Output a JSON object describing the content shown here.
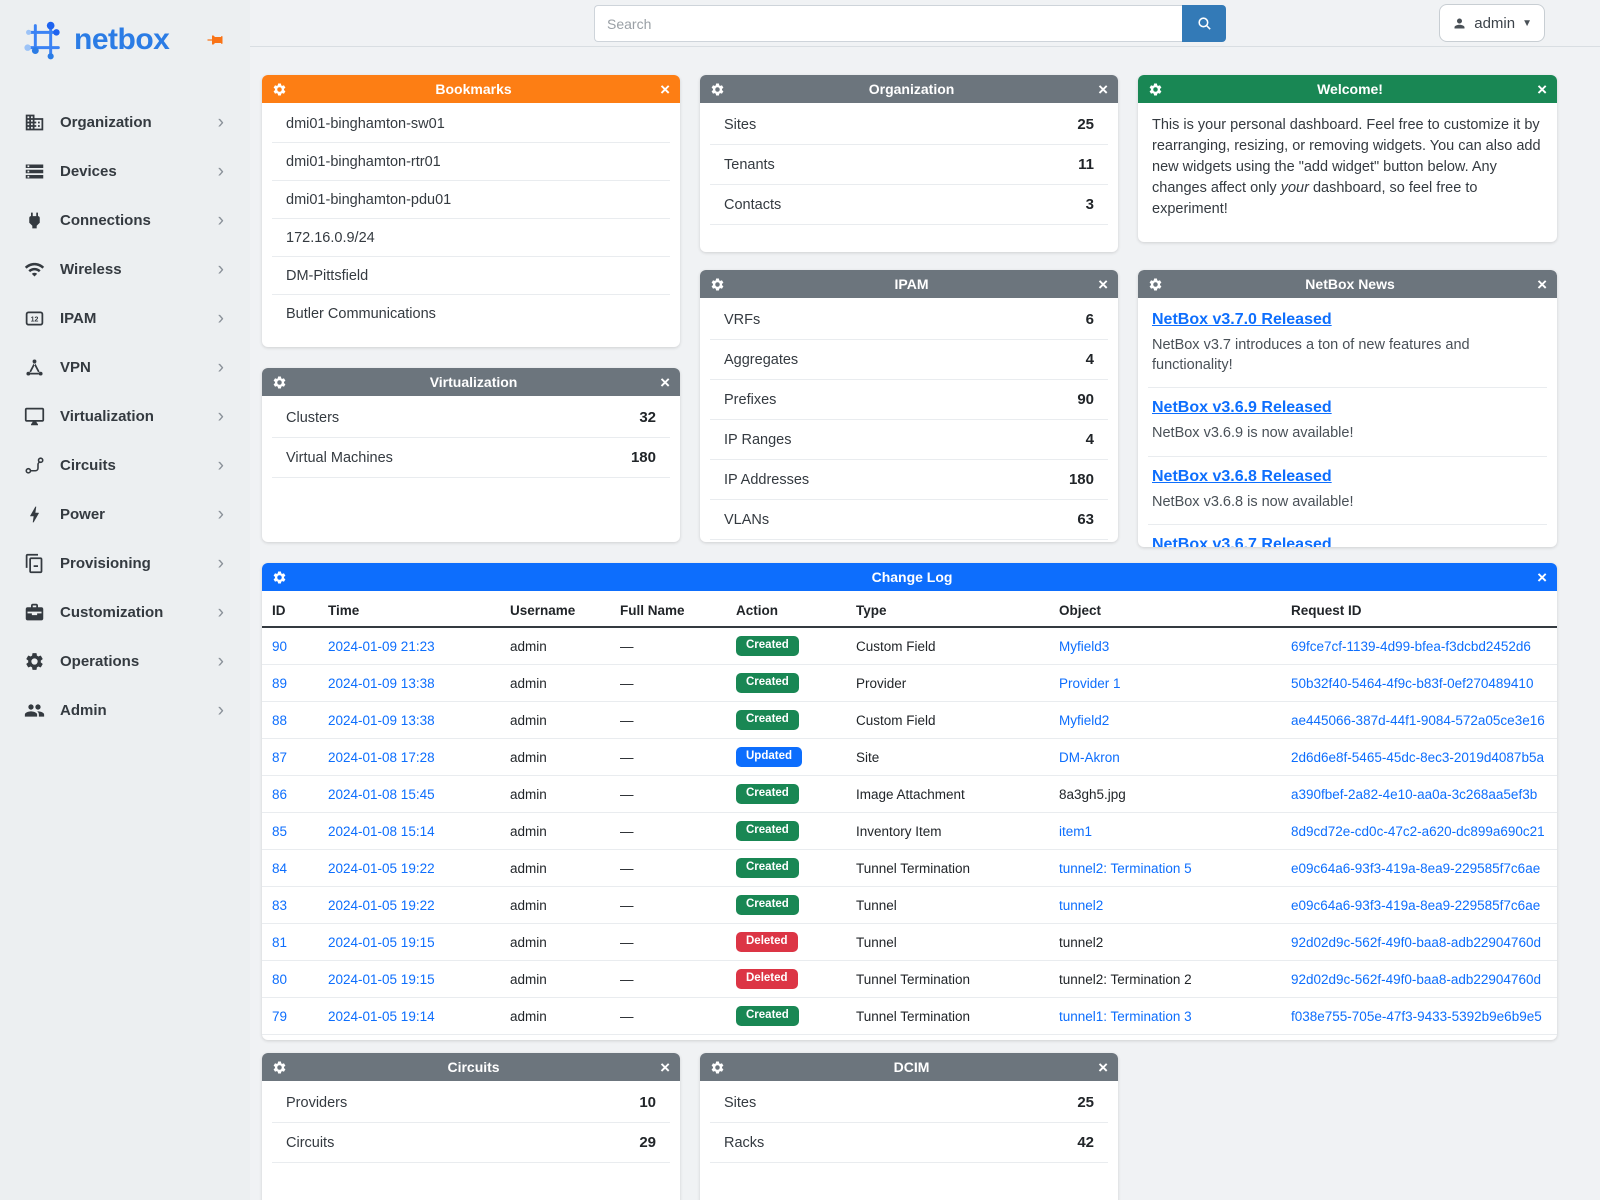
{
  "topbar": {
    "search_placeholder": "Search",
    "user": "admin"
  },
  "sidebar": {
    "brand": "netbox",
    "items": [
      {
        "label": "Organization",
        "icon": "organization-icon"
      },
      {
        "label": "Devices",
        "icon": "devices-icon"
      },
      {
        "label": "Connections",
        "icon": "connections-icon"
      },
      {
        "label": "Wireless",
        "icon": "wireless-icon"
      },
      {
        "label": "IPAM",
        "icon": "ipam-icon"
      },
      {
        "label": "VPN",
        "icon": "vpn-icon"
      },
      {
        "label": "Virtualization",
        "icon": "virtualization-icon"
      },
      {
        "label": "Circuits",
        "icon": "circuits-icon"
      },
      {
        "label": "Power",
        "icon": "power-icon"
      },
      {
        "label": "Provisioning",
        "icon": "provisioning-icon"
      },
      {
        "label": "Customization",
        "icon": "customization-icon"
      },
      {
        "label": "Operations",
        "icon": "operations-icon"
      },
      {
        "label": "Admin",
        "icon": "admin-icon"
      }
    ]
  },
  "colors": {
    "brand_blue": "#2b7ce5",
    "search_button": "#337ab7",
    "pin_orange": "#f97316",
    "link": "#0d6efd"
  },
  "widgets": {
    "bookmarks": {
      "title": "Bookmarks",
      "header_color": "#fd7e14",
      "items": [
        "dmi01-binghamton-sw01",
        "dmi01-binghamton-rtr01",
        "dmi01-binghamton-pdu01",
        "172.16.0.9/24",
        "DM-Pittsfield",
        "Butler Communications"
      ]
    },
    "organization": {
      "title": "Organization",
      "header_color": "#6c757d",
      "rows": [
        {
          "label": "Sites",
          "value": "25"
        },
        {
          "label": "Tenants",
          "value": "11"
        },
        {
          "label": "Contacts",
          "value": "3"
        }
      ]
    },
    "welcome": {
      "title": "Welcome!",
      "header_color": "#198754",
      "text_before": "This is your personal dashboard. Feel free to customize it by rearranging, resizing, or removing widgets. You can also add new widgets using the \"add widget\" button below. Any changes affect only ",
      "text_italic": "your",
      "text_after": " dashboard, so feel free to experiment!"
    },
    "virtualization": {
      "title": "Virtualization",
      "header_color": "#6c757d",
      "rows": [
        {
          "label": "Clusters",
          "value": "32"
        },
        {
          "label": "Virtual Machines",
          "value": "180"
        }
      ]
    },
    "ipam": {
      "title": "IPAM",
      "header_color": "#6c757d",
      "rows": [
        {
          "label": "VRFs",
          "value": "6"
        },
        {
          "label": "Aggregates",
          "value": "4"
        },
        {
          "label": "Prefixes",
          "value": "90"
        },
        {
          "label": "IP Ranges",
          "value": "4"
        },
        {
          "label": "IP Addresses",
          "value": "180"
        },
        {
          "label": "VLANs",
          "value": "63"
        }
      ]
    },
    "news": {
      "title": "NetBox News",
      "header_color": "#6c757d",
      "items": [
        {
          "title": "NetBox v3.7.0 Released",
          "description": "NetBox v3.7 introduces a ton of new features and functionality!"
        },
        {
          "title": "NetBox v3.6.9 Released",
          "description": "NetBox v3.6.9 is now available!"
        },
        {
          "title": "NetBox v3.6.8 Released",
          "description": "NetBox v3.6.8 is now available!"
        },
        {
          "title": "NetBox v3.6.7 Released",
          "description": ""
        }
      ]
    },
    "changelog": {
      "title": "Change Log",
      "header_color": "#0d6efd",
      "columns": [
        "ID",
        "Time",
        "Username",
        "Full Name",
        "Action",
        "Type",
        "Object",
        "Request ID"
      ],
      "action_colors": {
        "Created": "#198754",
        "Updated": "#0d6efd",
        "Deleted": "#dc3545"
      },
      "rows": [
        {
          "id": "90",
          "time": "2024-01-09 21:23",
          "username": "admin",
          "full_name": "—",
          "action": "Created",
          "type": "Custom Field",
          "object": "Myfield3",
          "object_is_link": true,
          "request_id": "69fce7cf-1139-4d99-bfea-f3dcbd2452d6"
        },
        {
          "id": "89",
          "time": "2024-01-09 13:38",
          "username": "admin",
          "full_name": "—",
          "action": "Created",
          "type": "Provider",
          "object": "Provider 1",
          "object_is_link": true,
          "request_id": "50b32f40-5464-4f9c-b83f-0ef270489410"
        },
        {
          "id": "88",
          "time": "2024-01-09 13:38",
          "username": "admin",
          "full_name": "—",
          "action": "Created",
          "type": "Custom Field",
          "object": "Myfield2",
          "object_is_link": true,
          "request_id": "ae445066-387d-44f1-9084-572a05ce3e16"
        },
        {
          "id": "87",
          "time": "2024-01-08 17:28",
          "username": "admin",
          "full_name": "—",
          "action": "Updated",
          "type": "Site",
          "object": "DM-Akron",
          "object_is_link": true,
          "request_id": "2d6d6e8f-5465-45dc-8ec3-2019d4087b5a"
        },
        {
          "id": "86",
          "time": "2024-01-08 15:45",
          "username": "admin",
          "full_name": "—",
          "action": "Created",
          "type": "Image Attachment",
          "object": "8a3gh5.jpg",
          "object_is_link": false,
          "request_id": "a390fbef-2a82-4e10-aa0a-3c268aa5ef3b"
        },
        {
          "id": "85",
          "time": "2024-01-08 15:14",
          "username": "admin",
          "full_name": "—",
          "action": "Created",
          "type": "Inventory Item",
          "object": "item1",
          "object_is_link": true,
          "request_id": "8d9cd72e-cd0c-47c2-a620-dc899a690c21"
        },
        {
          "id": "84",
          "time": "2024-01-05 19:22",
          "username": "admin",
          "full_name": "—",
          "action": "Created",
          "type": "Tunnel Termination",
          "object": "tunnel2: Termination 5",
          "object_is_link": true,
          "request_id": "e09c64a6-93f3-419a-8ea9-229585f7c6ae"
        },
        {
          "id": "83",
          "time": "2024-01-05 19:22",
          "username": "admin",
          "full_name": "—",
          "action": "Created",
          "type": "Tunnel",
          "object": "tunnel2",
          "object_is_link": true,
          "request_id": "e09c64a6-93f3-419a-8ea9-229585f7c6ae"
        },
        {
          "id": "81",
          "time": "2024-01-05 19:15",
          "username": "admin",
          "full_name": "—",
          "action": "Deleted",
          "type": "Tunnel",
          "object": "tunnel2",
          "object_is_link": false,
          "request_id": "92d02d9c-562f-49f0-baa8-adb22904760d"
        },
        {
          "id": "80",
          "time": "2024-01-05 19:15",
          "username": "admin",
          "full_name": "—",
          "action": "Deleted",
          "type": "Tunnel Termination",
          "object": "tunnel2: Termination 2",
          "object_is_link": false,
          "request_id": "92d02d9c-562f-49f0-baa8-adb22904760d"
        },
        {
          "id": "79",
          "time": "2024-01-05 19:14",
          "username": "admin",
          "full_name": "—",
          "action": "Created",
          "type": "Tunnel Termination",
          "object": "tunnel1: Termination 3",
          "object_is_link": true,
          "request_id": "f038e755-705e-47f3-9433-5392b9e6b9e5"
        }
      ]
    },
    "circuits": {
      "title": "Circuits",
      "header_color": "#6c757d",
      "rows": [
        {
          "label": "Providers",
          "value": "10"
        },
        {
          "label": "Circuits",
          "value": "29"
        }
      ]
    },
    "dcim": {
      "title": "DCIM",
      "header_color": "#6c757d",
      "rows": [
        {
          "label": "Sites",
          "value": "25"
        },
        {
          "label": "Racks",
          "value": "42"
        }
      ]
    }
  }
}
